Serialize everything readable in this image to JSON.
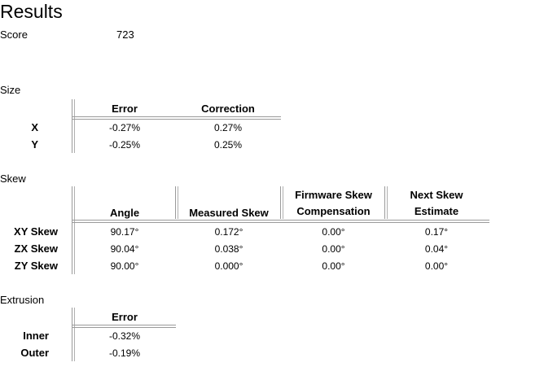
{
  "title": "Results",
  "score": {
    "label": "Score",
    "value": "723"
  },
  "size": {
    "label": "Size",
    "headers": [
      "Error",
      "Correction"
    ],
    "rows": [
      {
        "label": "X",
        "error": "-0.27%",
        "correction": "0.27%"
      },
      {
        "label": "Y",
        "error": "-0.25%",
        "correction": "0.25%"
      }
    ]
  },
  "skew": {
    "label": "Skew",
    "headers": {
      "angle": "Angle",
      "measured": "Measured Skew",
      "firmware_line1": "Firmware Skew",
      "firmware_line2": "Compensation",
      "next_line1": "Next Skew",
      "next_line2": "Estimate"
    },
    "rows": [
      {
        "label": "XY Skew",
        "angle": "90.17°",
        "measured": "0.172°",
        "firmware": "0.00°",
        "next": "0.17°"
      },
      {
        "label": "ZX Skew",
        "angle": "90.04°",
        "measured": "0.038°",
        "firmware": "0.00°",
        "next": "0.04°"
      },
      {
        "label": "ZY Skew",
        "angle": "90.00°",
        "measured": "0.000°",
        "firmware": "0.00°",
        "next": "0.00°"
      }
    ]
  },
  "extrusion": {
    "label": "Extrusion",
    "headers": [
      "Error"
    ],
    "rows": [
      {
        "label": "Inner",
        "error": "-0.32%"
      },
      {
        "label": "Outer",
        "error": "-0.19%"
      }
    ]
  }
}
